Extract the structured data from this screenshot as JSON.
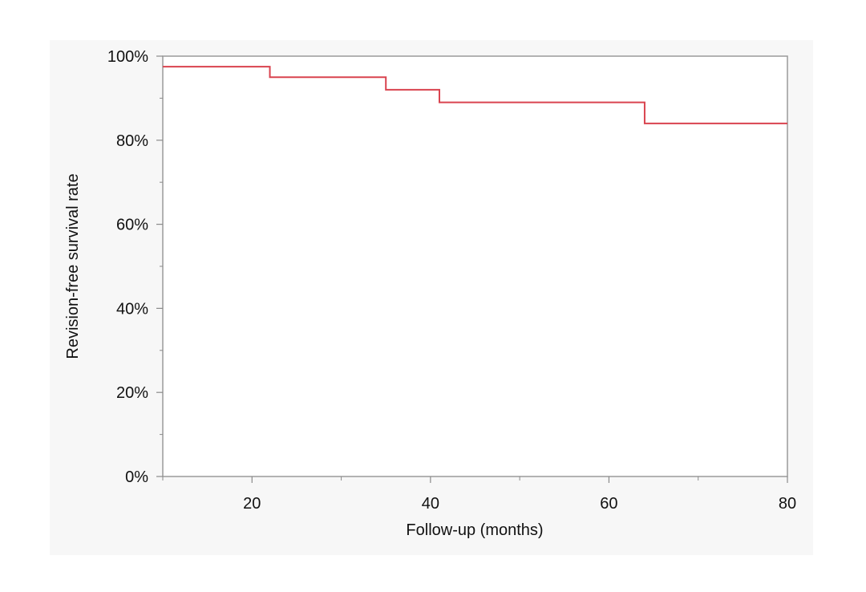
{
  "chart_data": {
    "type": "line",
    "step": true,
    "xlabel": "Follow-up (months)",
    "ylabel": "Revision-free survival rate",
    "xlim": [
      10,
      80
    ],
    "ylim": [
      0,
      100
    ],
    "x_ticks": [
      20,
      40,
      60,
      80
    ],
    "x_minor_ticks": [
      10,
      30,
      50,
      70
    ],
    "y_ticks": [
      0,
      20,
      40,
      60,
      80,
      100
    ],
    "y_tick_labels": [
      "0%",
      "20%",
      "40%",
      "60%",
      "80%",
      "100%"
    ],
    "y_minor_ticks": [
      10,
      30,
      50,
      70,
      90
    ],
    "grid": false,
    "background": "#f7f7f7",
    "series": [
      {
        "color": "#d9434f",
        "x": [
          10,
          22,
          35,
          41,
          64,
          80
        ],
        "y": [
          97.5,
          95,
          92,
          89,
          84,
          84
        ]
      }
    ]
  }
}
